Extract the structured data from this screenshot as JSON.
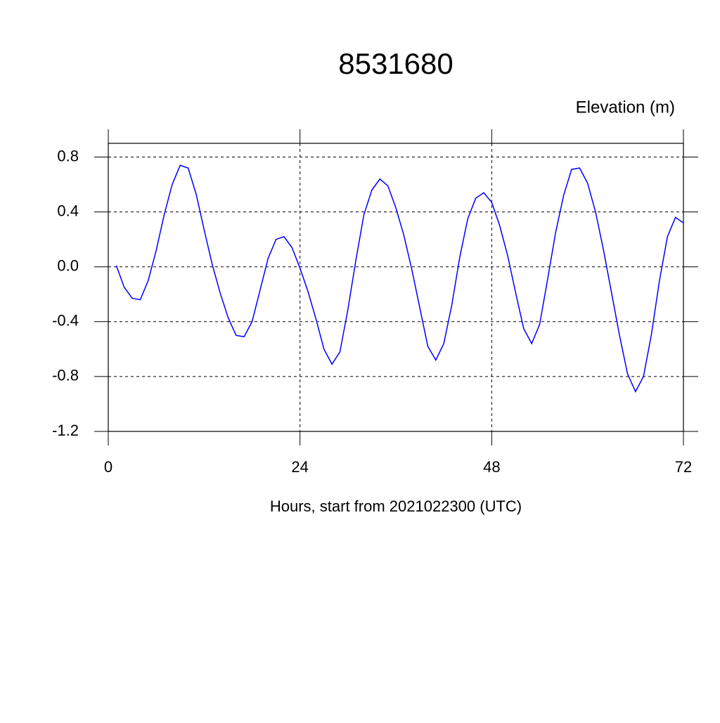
{
  "chart_data": {
    "type": "line",
    "title": "8531680",
    "subtitle": "Elevation (m)",
    "x_label": "Hours, start from 2021022300 (UTC)",
    "x": [
      1,
      2,
      3,
      4,
      5,
      6,
      7,
      8,
      9,
      10,
      11,
      12,
      13,
      14,
      15,
      16,
      17,
      18,
      19,
      20,
      21,
      22,
      23,
      24,
      25,
      26,
      27,
      28,
      29,
      30,
      31,
      32,
      33,
      34,
      35,
      36,
      37,
      38,
      39,
      40,
      41,
      42,
      43,
      44,
      45,
      46,
      47,
      48,
      49,
      50,
      51,
      52,
      53,
      54,
      55,
      56,
      57,
      58,
      59,
      60,
      61,
      62,
      63,
      64,
      65,
      66,
      67,
      68,
      69,
      70,
      71,
      72
    ],
    "series": [
      {
        "name": "Elevation",
        "color": "#0000ff",
        "values": [
          0.01,
          -0.15,
          -0.23,
          -0.24,
          -0.1,
          0.12,
          0.38,
          0.6,
          0.74,
          0.72,
          0.53,
          0.27,
          0.02,
          -0.19,
          -0.37,
          -0.5,
          -0.51,
          -0.4,
          -0.17,
          0.06,
          0.2,
          0.22,
          0.14,
          -0.01,
          -0.18,
          -0.38,
          -0.6,
          -0.71,
          -0.62,
          -0.31,
          0.05,
          0.38,
          0.56,
          0.64,
          0.59,
          0.43,
          0.23,
          -0.02,
          -0.3,
          -0.58,
          -0.68,
          -0.56,
          -0.28,
          0.07,
          0.35,
          0.5,
          0.54,
          0.47,
          0.3,
          0.08,
          -0.19,
          -0.45,
          -0.56,
          -0.42,
          -0.09,
          0.25,
          0.52,
          0.71,
          0.72,
          0.61,
          0.4,
          0.12,
          -0.19,
          -0.5,
          -0.78,
          -0.91,
          -0.8,
          -0.49,
          -0.1,
          0.22,
          0.36,
          0.32
        ]
      }
    ],
    "xlim": [
      0,
      72
    ],
    "xticks": [
      0,
      24,
      48,
      72
    ],
    "ylim": [
      -1.2,
      0.9
    ],
    "yticks": [
      0.8,
      0.4,
      {
        "value": 0,
        "label": "0.0"
      },
      -0.4,
      -0.8,
      -1.2
    ],
    "grid": true
  }
}
